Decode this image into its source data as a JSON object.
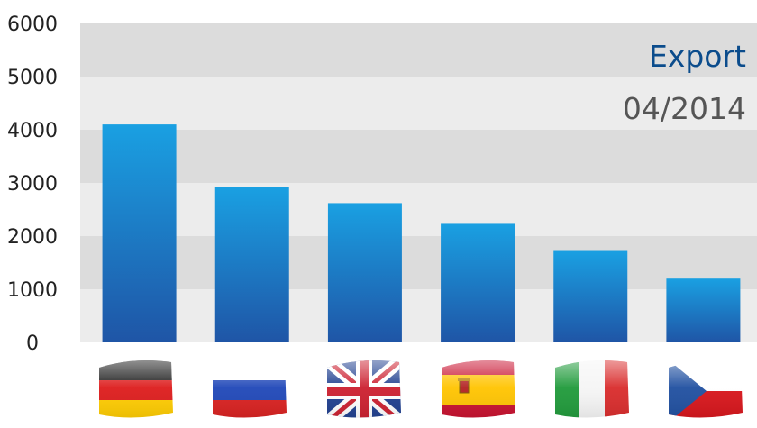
{
  "chart_data": {
    "type": "bar",
    "title": "Export",
    "subtitle": "04/2014",
    "categories": [
      "Germany",
      "Russia",
      "United Kingdom",
      "Spain",
      "Italy",
      "Czech Republic"
    ],
    "values": [
      4100,
      2920,
      2620,
      2230,
      1720,
      1200
    ],
    "ylim": [
      0,
      6000
    ],
    "yticks": [
      0,
      1000,
      2000,
      3000,
      4000,
      5000,
      6000
    ],
    "grid": "alternating horizontal bands",
    "legend": "none",
    "category_icons": [
      "flag-germany-icon",
      "flag-russia-icon",
      "flag-uk-icon",
      "flag-spain-icon",
      "flag-italy-icon",
      "flag-czech-icon"
    ]
  },
  "colors": {
    "bar_top": "#1aa0e2",
    "bar_bottom": "#1f55a6",
    "band_light": "#ececec",
    "band_dark": "#dcdcdc",
    "title": "#0b4c8c",
    "subtitle": "#555555"
  }
}
